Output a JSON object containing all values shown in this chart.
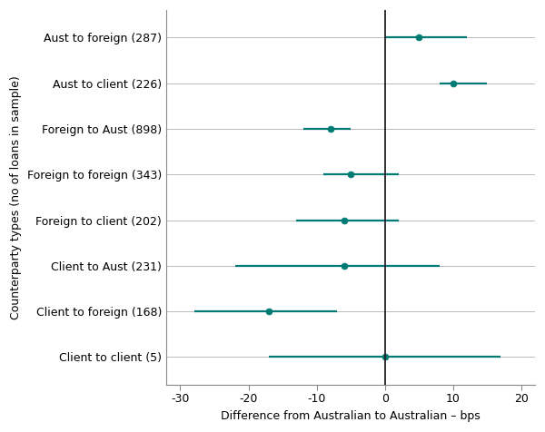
{
  "categories": [
    "Client to client (5)",
    "Client to foreign (168)",
    "Client to Aust (231)",
    "Foreign to client (202)",
    "Foreign to foreign (343)",
    "Foreign to Aust (898)",
    "Aust to client (226)",
    "Aust to foreign (287)"
  ],
  "point_estimates": [
    0.0,
    -17.0,
    -6.0,
    -6.0,
    -5.0,
    -8.0,
    10.0,
    5.0
  ],
  "ci_low": [
    -17.0,
    -28.0,
    -22.0,
    -13.0,
    -9.0,
    -12.0,
    8.0,
    0.0
  ],
  "ci_high": [
    17.0,
    -7.0,
    8.0,
    2.0,
    2.0,
    -5.0,
    15.0,
    12.0
  ],
  "color": "#007b74",
  "xlabel": "Difference from Australian to Australian – bps",
  "ylabel": "Counterparty types (no of loans in sample)",
  "xlim": [
    -32,
    22
  ],
  "xticks": [
    -30,
    -20,
    -10,
    0,
    10,
    20
  ],
  "marker_size": 5,
  "line_width": 1.6,
  "grid_color": "#bbbbbb",
  "vline_color": "#222222",
  "background_color": "#ffffff",
  "label_fontsize": 9,
  "tick_fontsize": 9,
  "ylabel_fontsize": 9
}
